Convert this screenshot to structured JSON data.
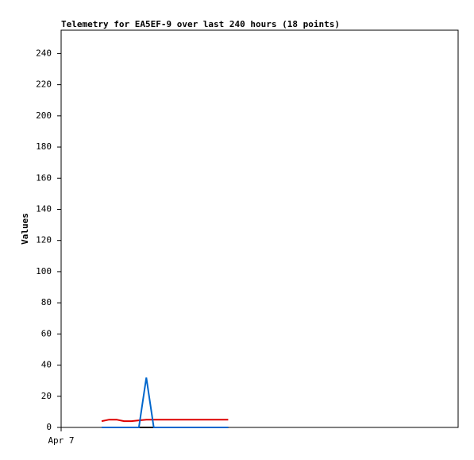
{
  "chart_data": {
    "type": "line",
    "title": "Telemetry for EA5EF-9 over last 240 hours (18 points)",
    "y_label": "Values",
    "x": [
      24.5,
      29,
      33.5,
      38,
      42.5,
      47,
      51.5,
      56,
      60.5,
      65,
      69.5,
      74,
      78.5,
      83,
      87.5,
      92,
      96.5,
      101
    ],
    "xlim": [
      0,
      240
    ],
    "xticks": [
      {
        "value": 0,
        "label": "Apr 7"
      }
    ],
    "ylim": [
      0,
      255
    ],
    "yticks": [
      0,
      20,
      40,
      60,
      80,
      100,
      120,
      140,
      160,
      180,
      200,
      220,
      240
    ],
    "series": [
      {
        "color": "#000000",
        "values": [
          0,
          0,
          0,
          0,
          0,
          0,
          0,
          0,
          0,
          0,
          0,
          0,
          0,
          0,
          0,
          0,
          0,
          0
        ]
      },
      {
        "color": "#dd0000",
        "values": [
          4,
          5,
          5,
          4,
          4,
          4.5,
          5,
          5,
          5,
          5,
          5,
          5,
          5,
          5,
          5,
          5,
          5,
          5
        ]
      },
      {
        "color": "#0066cc",
        "values": [
          0,
          0,
          0,
          0,
          0,
          0,
          32,
          0,
          0,
          0,
          0,
          0,
          0,
          0,
          0,
          0,
          0,
          0
        ]
      }
    ]
  }
}
